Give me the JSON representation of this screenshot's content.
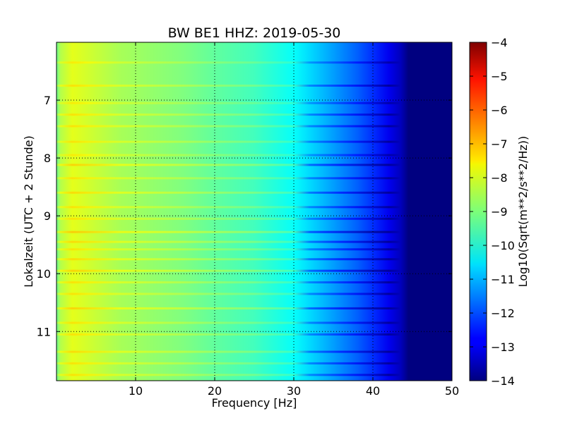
{
  "chart_data": {
    "type": "heatmap",
    "title": "BW BE1 HHZ: 2019-05-30",
    "xlabel": "Frequency [Hz]",
    "ylabel": "Lokalzeit (UTC + 2 Stunde)",
    "colorbar_label": "Log10(Sqrt(m**2/s**2/Hz))",
    "xlim": [
      0,
      50
    ],
    "ylim": [
      11.85,
      6.0
    ],
    "xticks": [
      10,
      20,
      30,
      40,
      50
    ],
    "xtick_labels": [
      "10",
      "20",
      "30",
      "40",
      "50"
    ],
    "yticks": [
      7,
      8,
      9,
      10,
      11
    ],
    "ytick_labels": [
      "7",
      "8",
      "9",
      "10",
      "11"
    ],
    "clim": [
      -14,
      -4
    ],
    "cticks": [
      -4,
      -5,
      -6,
      -7,
      -8,
      -9,
      -10,
      -11,
      -12,
      -13,
      -14
    ],
    "ctick_labels": [
      "−4",
      "−5",
      "−6",
      "−7",
      "−8",
      "−9",
      "−10",
      "−11",
      "−12",
      "−13",
      "−14"
    ],
    "colormap": "jet",
    "grid": true,
    "frequency_profile": {
      "x": [
        0,
        0.5,
        2,
        4,
        8,
        12,
        16,
        20,
        25,
        30,
        32,
        34,
        36,
        38,
        40,
        42,
        43.5,
        44.5,
        50
      ],
      "values": [
        -9.2,
        -8.5,
        -8.0,
        -8.2,
        -8.6,
        -8.8,
        -9.0,
        -9.3,
        -9.6,
        -10.2,
        -10.6,
        -11.0,
        -11.4,
        -11.8,
        -12.3,
        -12.9,
        -13.4,
        -14.0,
        -14.0
      ]
    },
    "horizontal_bands": [
      {
        "time": 6.35,
        "offset": 0.5
      },
      {
        "time": 6.75,
        "offset": 0.6
      },
      {
        "time": 7.05,
        "offset": 0.5
      },
      {
        "time": 7.25,
        "offset": 0.6
      },
      {
        "time": 7.45,
        "offset": 0.6
      },
      {
        "time": 7.72,
        "offset": 0.6
      },
      {
        "time": 7.95,
        "offset": 0.5
      },
      {
        "time": 8.12,
        "offset": 0.8
      },
      {
        "time": 8.35,
        "offset": 0.6
      },
      {
        "time": 8.6,
        "offset": 0.7
      },
      {
        "time": 8.85,
        "offset": 0.6
      },
      {
        "time": 9.05,
        "offset": 0.6
      },
      {
        "time": 9.28,
        "offset": 0.9
      },
      {
        "time": 9.45,
        "offset": 0.7
      },
      {
        "time": 9.58,
        "offset": 0.6
      },
      {
        "time": 9.75,
        "offset": 0.7
      },
      {
        "time": 9.95,
        "offset": 0.8
      },
      {
        "time": 10.15,
        "offset": 0.6
      },
      {
        "time": 10.35,
        "offset": 0.6
      },
      {
        "time": 10.6,
        "offset": 0.8
      },
      {
        "time": 10.85,
        "offset": 0.6
      },
      {
        "time": 11.05,
        "offset": 0.6
      },
      {
        "time": 11.35,
        "offset": 0.7
      },
      {
        "time": 11.55,
        "offset": 0.6
      },
      {
        "time": 11.75,
        "offset": 0.6
      }
    ]
  }
}
